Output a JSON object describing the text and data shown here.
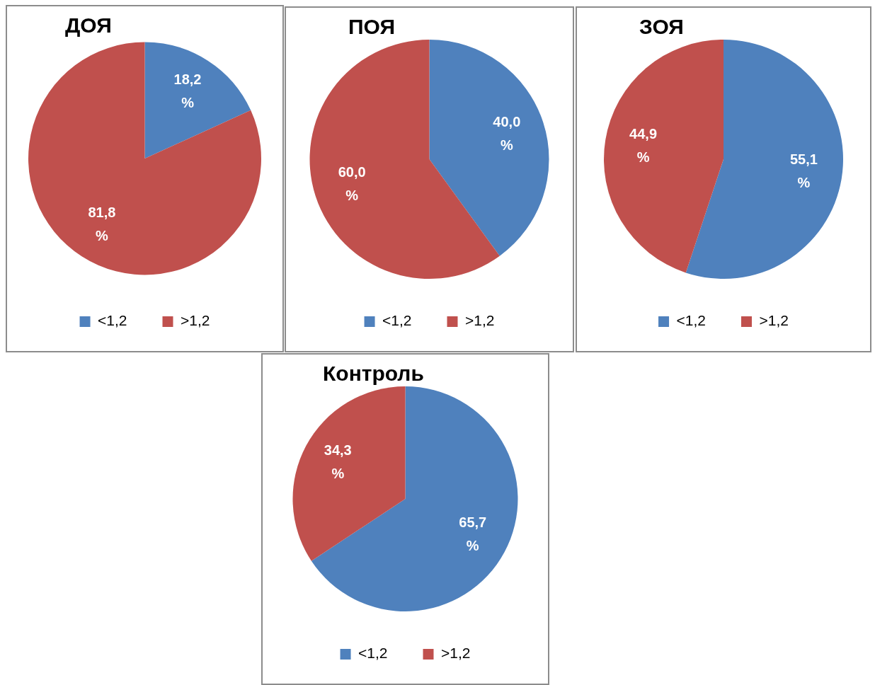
{
  "chart_data": [
    {
      "type": "pie",
      "title": "ДОЯ",
      "categories": [
        "<1,2",
        ">1,2"
      ],
      "values": [
        18.2,
        81.8
      ],
      "colors": [
        "#4f81bd",
        "#c0504d"
      ],
      "value_labels": [
        "18,2 %",
        "81,8 %"
      ],
      "legend": "bottom"
    },
    {
      "type": "pie",
      "title": "ПОЯ",
      "categories": [
        "<1,2",
        ">1,2"
      ],
      "values": [
        40.0,
        60.0
      ],
      "colors": [
        "#4f81bd",
        "#c0504d"
      ],
      "value_labels": [
        "40,0 %",
        "60,0 %"
      ],
      "legend": "bottom"
    },
    {
      "type": "pie",
      "title": "ЗОЯ",
      "categories": [
        "<1,2",
        ">1,2"
      ],
      "values": [
        55.1,
        44.9
      ],
      "colors": [
        "#4f81bd",
        "#c0504d"
      ],
      "value_labels": [
        "55,1 %",
        "44,9 %"
      ],
      "legend": "bottom"
    },
    {
      "type": "pie",
      "title": "Контроль",
      "categories": [
        "<1,2",
        ">1,2"
      ],
      "values": [
        65.7,
        34.3
      ],
      "colors": [
        "#4f81bd",
        "#c0504d"
      ],
      "value_labels": [
        "65,7 %",
        "34,3 %"
      ],
      "legend": "bottom"
    }
  ]
}
